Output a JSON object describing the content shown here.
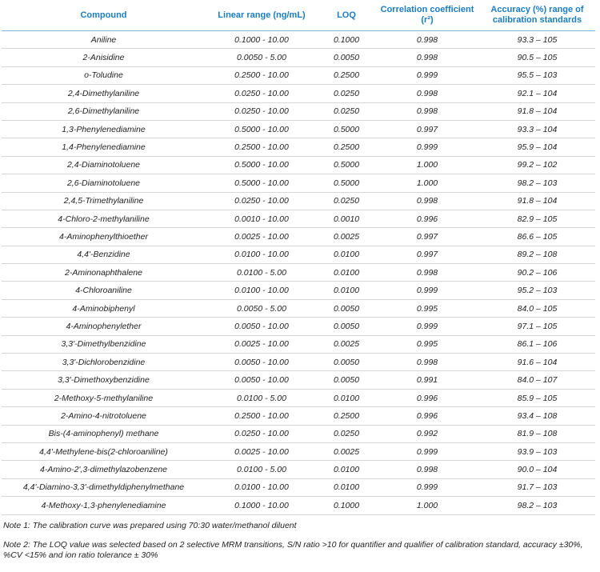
{
  "table": {
    "header": [
      "Compound",
      "Linear range (ng/mL)",
      "LOQ",
      "Correlation coefficient (r²)",
      "Accuracy (%) range of calibration standards"
    ],
    "rows": [
      [
        "Aniline",
        "0.1000 - 10.00",
        "0.1000",
        "0.998",
        "93.3 – 105"
      ],
      [
        "2-Anisidine",
        "0.0050 - 5.00",
        "0.0050",
        "0.998",
        "90.5 – 105"
      ],
      [
        "o-Toludine",
        "0.2500 - 10.00",
        "0.2500",
        "0.999",
        "95.5 – 103"
      ],
      [
        "2,4-Dimethylaniline",
        "0.0250 - 10.00",
        "0.0250",
        "0.998",
        "92.1 – 104"
      ],
      [
        "2,6-Dimethylaniline",
        "0.0250 - 10.00",
        "0.0250",
        "0.998",
        "91.8 – 104"
      ],
      [
        "1,3-Phenylenediamine",
        "0.5000 - 10.00",
        "0.5000",
        "0.997",
        "93.3 – 104"
      ],
      [
        "1,4-Phenylenediamine",
        "0.2500 - 10.00",
        "0.2500",
        "0.999",
        "95.9 – 104"
      ],
      [
        "2,4-Diaminotoluene",
        "0.5000 - 10.00",
        "0.5000",
        "1.000",
        "99.2 – 102"
      ],
      [
        "2,6-Diaminotoluene",
        "0.5000 - 10.00",
        "0.5000",
        "1.000",
        "98.2 – 103"
      ],
      [
        "2,4,5-Trimethylaniline",
        "0.0250 - 10.00",
        "0.0250",
        "0.998",
        "91.8 – 104"
      ],
      [
        "4-Chloro-2-methylaniline",
        "0.0010 - 10.00",
        "0.0010",
        "0.996",
        "82.9 – 105"
      ],
      [
        "4-Aminophenylthioether",
        "0.0025 - 10.00",
        "0.0025",
        "0.997",
        "86.6 – 105"
      ],
      [
        "4,4'-Benzidine",
        "0.0100 - 10.00",
        "0.0100",
        "0.997",
        "89.2 – 108"
      ],
      [
        "2-Aminonaphthalene",
        "0.0100 - 5.00",
        "0.0100",
        "0.998",
        "90.2 – 106"
      ],
      [
        "4-Chloroaniline",
        "0.0100 - 10.00",
        "0.0100",
        "0.999",
        "95.2 – 103"
      ],
      [
        "4-Aminobiphenyl",
        "0.0050 - 5.00",
        "0.0050",
        "0.995",
        "84.0 – 105"
      ],
      [
        "4-Aminophenylether",
        "0.0050 - 10.00",
        "0.0050",
        "0.999",
        "97.1 – 105"
      ],
      [
        "3,3'-Dimethylbenzidine",
        "0.0025 - 10.00",
        "0.0025",
        "0.995",
        "86.1 – 106"
      ],
      [
        "3,3'-Dichlorobenzidine",
        "0.0050 - 10.00",
        "0.0050",
        "0.998",
        "91.6 – 104"
      ],
      [
        "3,3'-Dimethoxybenzidine",
        "0.0050 - 10.00",
        "0.0050",
        "0.991",
        "84.0 – 107"
      ],
      [
        "2-Methoxy-5-methylaniline",
        "0.0100 - 5.00",
        "0.0100",
        "0.996",
        "85.9 – 105"
      ],
      [
        "2-Amino-4-nitrotoluene",
        "0.2500 - 10.00",
        "0.2500",
        "0.996",
        "93.4 – 108"
      ],
      [
        "Bis-(4-aminophenyl) methane",
        "0.0250 - 10.00",
        "0.0250",
        "0.992",
        "81.9 – 108"
      ],
      [
        "4,4'-Methylene-bis(2-chloroaniline)",
        "0.0025 - 10.00",
        "0.0025",
        "0.999",
        "93.9 – 103"
      ],
      [
        "4-Amino-2',3-dimethylazobenzene",
        "0.0100 - 5.00",
        "0.0100",
        "0.998",
        "90.0 – 104"
      ],
      [
        "4,4'-Diamino-3,3'-dimethyldiphenylmethane",
        "0.0100 - 10.00",
        "0.0100",
        "0.999",
        "91.7 – 103"
      ],
      [
        "4-Methoxy-1,3-phenylenediamine",
        "0.1000 - 10.00",
        "0.1000",
        "1.000",
        "98.2 – 103"
      ]
    ]
  },
  "notes": [
    "Note 1: The calibration curve was prepared using 70:30 water/methanol diluent",
    "Note 2: The LOQ value was selected based on 2 selective MRM transitions, S/N ratio >10 for quantifier and qualifier of calibration standard, accuracy ±30%, %CV <15% and ion ratio tolerance ± 30%"
  ]
}
